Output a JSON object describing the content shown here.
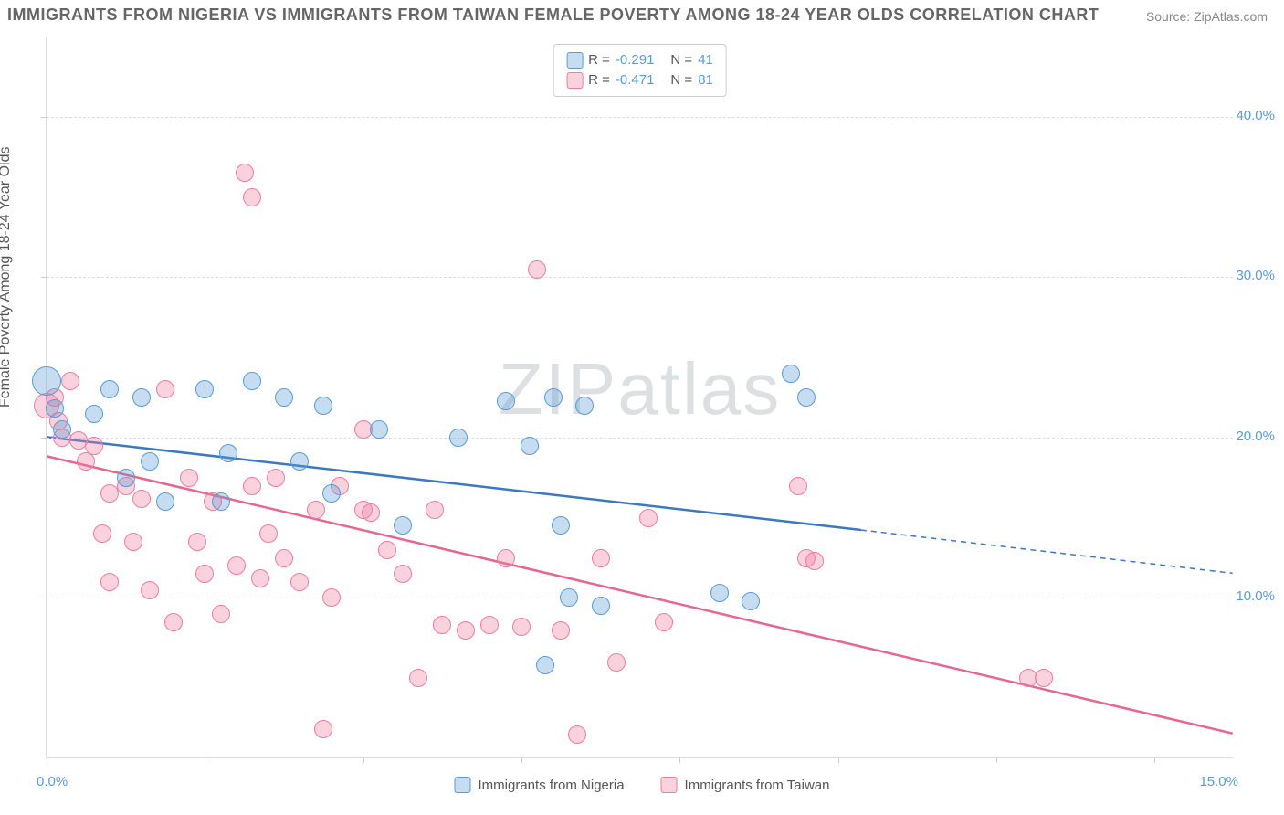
{
  "title": "IMMIGRANTS FROM NIGERIA VS IMMIGRANTS FROM TAIWAN FEMALE POVERTY AMONG 18-24 YEAR OLDS CORRELATION CHART",
  "source": "Source: ZipAtlas.com",
  "y_axis_label": "Female Poverty Among 18-24 Year Olds",
  "watermark_a": "ZIP",
  "watermark_b": "atlas",
  "chart": {
    "type": "scatter",
    "background_color": "#ffffff",
    "grid_color": "#dddddd",
    "xlim": [
      0,
      15
    ],
    "ylim": [
      0,
      45
    ],
    "x_ticks": [
      0,
      2,
      4,
      6,
      8,
      10,
      12,
      14
    ],
    "x_tick_labels": {
      "left": "0.0%",
      "right": "15.0%"
    },
    "y_grid": [
      10,
      20,
      30,
      40
    ],
    "y_tick_labels": [
      "10.0%",
      "20.0%",
      "30.0%",
      "40.0%"
    ],
    "marker_radius": 10,
    "title_fontsize": 18,
    "label_fontsize": 16,
    "tick_fontsize": 15
  },
  "series": {
    "blue": {
      "name": "Immigrants from Nigeria",
      "color_fill": "rgba(91,155,213,0.35)",
      "color_stroke": "#5b9bd5",
      "R": "-0.291",
      "N": "41",
      "trend": {
        "x1": 0,
        "y1": 20.0,
        "x2": 10.3,
        "y2": 14.2,
        "x_ext": 15,
        "y_ext": 11.5,
        "color": "#3b78c4",
        "width": 2.5
      },
      "points": [
        [
          0.0,
          23.5,
          16
        ],
        [
          0.1,
          21.8
        ],
        [
          0.2,
          20.5
        ],
        [
          0.8,
          23.0
        ],
        [
          0.6,
          21.5
        ],
        [
          1.2,
          22.5
        ],
        [
          1.0,
          17.5
        ],
        [
          1.3,
          18.5
        ],
        [
          1.5,
          16.0
        ],
        [
          2.0,
          23.0
        ],
        [
          2.2,
          16.0
        ],
        [
          2.3,
          19.0
        ],
        [
          2.6,
          23.5
        ],
        [
          3.0,
          22.5
        ],
        [
          3.2,
          18.5
        ],
        [
          3.5,
          22.0
        ],
        [
          3.6,
          16.5
        ],
        [
          4.2,
          20.5
        ],
        [
          4.5,
          14.5
        ],
        [
          5.2,
          20.0
        ],
        [
          5.8,
          22.3
        ],
        [
          6.1,
          19.5
        ],
        [
          6.3,
          5.8
        ],
        [
          6.4,
          22.5
        ],
        [
          6.5,
          14.5
        ],
        [
          6.6,
          10.0
        ],
        [
          6.8,
          22.0
        ],
        [
          7.0,
          9.5
        ],
        [
          8.5,
          10.3
        ],
        [
          8.9,
          9.8
        ],
        [
          9.4,
          24.0
        ],
        [
          9.6,
          22.5
        ]
      ]
    },
    "pink": {
      "name": "Immigrants from Taiwan",
      "color_fill": "rgba(237,125,158,0.35)",
      "color_stroke": "#ed7d9e",
      "R": "-0.471",
      "N": "81",
      "trend": {
        "x1": 0,
        "y1": 18.8,
        "x2": 15,
        "y2": 1.5,
        "color": "#e8658f",
        "width": 2.5
      },
      "points": [
        [
          0.0,
          22.0,
          14
        ],
        [
          0.1,
          22.5
        ],
        [
          0.15,
          21.0
        ],
        [
          0.3,
          23.5
        ],
        [
          0.2,
          20.0
        ],
        [
          0.4,
          19.8
        ],
        [
          0.5,
          18.5
        ],
        [
          0.6,
          19.5
        ],
        [
          0.7,
          14.0
        ],
        [
          0.8,
          16.5
        ],
        [
          0.8,
          11.0
        ],
        [
          1.0,
          17.0
        ],
        [
          1.1,
          13.5
        ],
        [
          1.2,
          16.2
        ],
        [
          1.3,
          10.5
        ],
        [
          1.5,
          23.0
        ],
        [
          1.6,
          8.5
        ],
        [
          1.8,
          17.5
        ],
        [
          1.9,
          13.5
        ],
        [
          2.0,
          11.5
        ],
        [
          2.1,
          16.0
        ],
        [
          2.2,
          9.0
        ],
        [
          2.4,
          12.0
        ],
        [
          2.5,
          36.5
        ],
        [
          2.6,
          35.0
        ],
        [
          2.6,
          17.0
        ],
        [
          2.7,
          11.2
        ],
        [
          2.8,
          14.0
        ],
        [
          2.9,
          17.5
        ],
        [
          3.0,
          12.5
        ],
        [
          3.2,
          11.0
        ],
        [
          3.4,
          15.5
        ],
        [
          3.5,
          1.8
        ],
        [
          3.6,
          10.0
        ],
        [
          3.7,
          17.0
        ],
        [
          4.0,
          15.5
        ],
        [
          4.0,
          20.5
        ],
        [
          4.1,
          15.3
        ],
        [
          4.3,
          13.0
        ],
        [
          4.5,
          11.5
        ],
        [
          4.7,
          5.0
        ],
        [
          4.9,
          15.5
        ],
        [
          5.0,
          8.3
        ],
        [
          5.3,
          8.0
        ],
        [
          5.6,
          8.3
        ],
        [
          5.8,
          12.5
        ],
        [
          6.0,
          8.2
        ],
        [
          6.2,
          30.5
        ],
        [
          6.5,
          8.0
        ],
        [
          6.7,
          1.5
        ],
        [
          7.0,
          12.5
        ],
        [
          7.2,
          6.0
        ],
        [
          7.6,
          15.0
        ],
        [
          7.8,
          8.5
        ],
        [
          9.5,
          17.0
        ],
        [
          9.6,
          12.5
        ],
        [
          9.7,
          12.3
        ],
        [
          12.4,
          5.0
        ],
        [
          12.6,
          5.0
        ]
      ]
    }
  },
  "legend_top": [
    {
      "swatch": "blue",
      "r_value": "-0.291",
      "n_value": "41"
    },
    {
      "swatch": "pink",
      "r_value": "-0.471",
      "n_value": "81"
    }
  ],
  "legend_bottom": [
    {
      "swatch": "blue",
      "label": "Immigrants from Nigeria"
    },
    {
      "swatch": "pink",
      "label": "Immigrants from Taiwan"
    }
  ]
}
